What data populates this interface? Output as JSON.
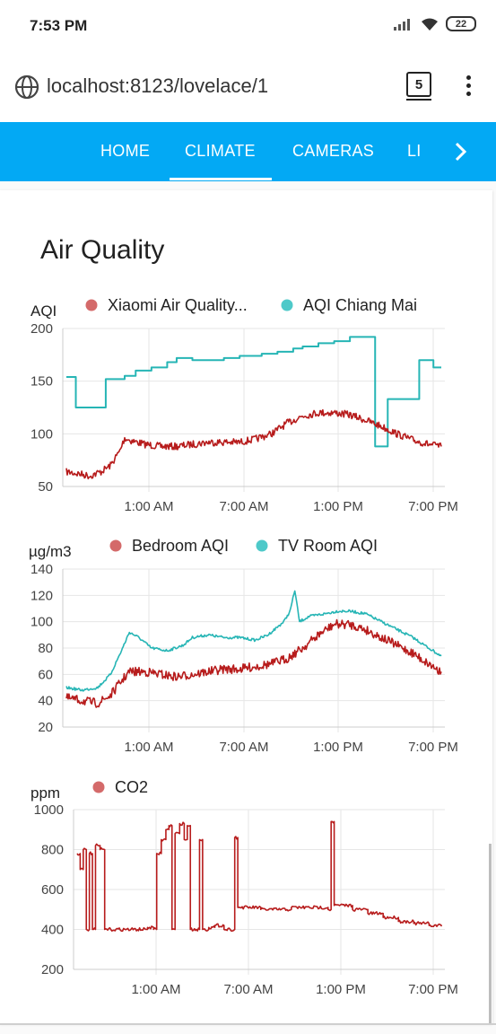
{
  "status_bar": {
    "time": "7:53 PM",
    "battery": "22"
  },
  "browser": {
    "url": "localhost:8123/lovelace/1",
    "tab_count": "5"
  },
  "tabs": [
    {
      "label": "HOME",
      "active": false
    },
    {
      "label": "CLIMATE",
      "active": true
    },
    {
      "label": "CAMERAS",
      "active": false
    },
    {
      "label": "LI",
      "active": false
    }
  ],
  "card": {
    "title": "Air Quality"
  },
  "colors": {
    "accent": "#03a9f4",
    "red": "#b71c1c",
    "teal": "#26b5b5",
    "grid": "#e0e0e0"
  },
  "chart_data": [
    {
      "type": "line",
      "ylabel": "AQI",
      "ylim": [
        50,
        200
      ],
      "yticks": [
        "200",
        "150",
        "100",
        "50"
      ],
      "xticks": [
        "1:00 AM",
        "7:00 AM",
        "1:00 PM",
        "7:00 PM"
      ],
      "xlim_hours": [
        20.0,
        43.8
      ],
      "series": [
        {
          "name": "Xiaomi Air Quality...",
          "color": "#b71c1c",
          "noise": 4,
          "type": "line",
          "points": [
            [
              20.0,
              64
            ],
            [
              20.8,
              62
            ],
            [
              21.5,
              60
            ],
            [
              22.2,
              64
            ],
            [
              22.8,
              70
            ],
            [
              23.4,
              84
            ],
            [
              23.7,
              96
            ],
            [
              24.0,
              94
            ],
            [
              25.0,
              90
            ],
            [
              26.0,
              88
            ],
            [
              27.0,
              88
            ],
            [
              28.0,
              90
            ],
            [
              29.0,
              92
            ],
            [
              30.0,
              92
            ],
            [
              31.0,
              92
            ],
            [
              32.0,
              95
            ],
            [
              33.0,
              100
            ],
            [
              34.0,
              110
            ],
            [
              35.0,
              117
            ],
            [
              36.0,
              120
            ],
            [
              37.0,
              120
            ],
            [
              38.0,
              118
            ],
            [
              39.0,
              113
            ],
            [
              40.0,
              107
            ],
            [
              41.0,
              100
            ],
            [
              42.0,
              94
            ],
            [
              43.0,
              90
            ],
            [
              43.8,
              88
            ]
          ]
        },
        {
          "name": "AQI Chiang Mai",
          "color": "#26b5b5",
          "noise": 0,
          "type": "step",
          "points": [
            [
              20.0,
              154
            ],
            [
              20.6,
              125
            ],
            [
              22.5,
              152
            ],
            [
              23.7,
              155
            ],
            [
              24.4,
              160
            ],
            [
              25.4,
              163
            ],
            [
              26.4,
              168
            ],
            [
              27.0,
              172
            ],
            [
              28.0,
              170
            ],
            [
              30.0,
              172
            ],
            [
              31.0,
              174
            ],
            [
              32.4,
              176
            ],
            [
              33.4,
              178
            ],
            [
              34.4,
              181
            ],
            [
              35.0,
              183
            ],
            [
              36.0,
              186
            ],
            [
              37.0,
              188
            ],
            [
              38.0,
              192
            ],
            [
              39.4,
              192
            ],
            [
              39.6,
              88
            ],
            [
              40.4,
              133
            ],
            [
              42.4,
              170
            ],
            [
              43.3,
              163
            ],
            [
              43.8,
              163
            ]
          ]
        }
      ]
    },
    {
      "type": "line",
      "ylabel": "µg/m3",
      "ylim": [
        20,
        140
      ],
      "yticks": [
        "140",
        "120",
        "100",
        "80",
        "60",
        "40",
        "20"
      ],
      "xticks": [
        "1:00 AM",
        "7:00 AM",
        "1:00 PM",
        "7:00 PM"
      ],
      "xlim_hours": [
        20.0,
        43.8
      ],
      "series": [
        {
          "name": "Bedroom AQI",
          "color": "#b71c1c",
          "noise": 5,
          "type": "line",
          "points": [
            [
              20.0,
              42
            ],
            [
              21.0,
              40
            ],
            [
              22.0,
              38
            ],
            [
              22.8,
              44
            ],
            [
              23.5,
              55
            ],
            [
              24.0,
              62
            ],
            [
              25.0,
              62
            ],
            [
              26.0,
              60
            ],
            [
              27.0,
              58
            ],
            [
              28.0,
              60
            ],
            [
              29.0,
              62
            ],
            [
              30.0,
              64
            ],
            [
              31.0,
              64
            ],
            [
              32.0,
              66
            ],
            [
              33.0,
              68
            ],
            [
              34.0,
              72
            ],
            [
              35.0,
              80
            ],
            [
              36.0,
              90
            ],
            [
              37.0,
              98
            ],
            [
              38.0,
              98
            ],
            [
              39.0,
              94
            ],
            [
              40.0,
              88
            ],
            [
              41.0,
              82
            ],
            [
              42.0,
              76
            ],
            [
              43.0,
              68
            ],
            [
              43.8,
              62
            ]
          ]
        },
        {
          "name": "TV Room AQI",
          "color": "#26b5b5",
          "noise": 1.5,
          "type": "line",
          "points": [
            [
              20.0,
              50
            ],
            [
              21.0,
              48
            ],
            [
              22.0,
              50
            ],
            [
              22.8,
              60
            ],
            [
              23.5,
              78
            ],
            [
              24.0,
              92
            ],
            [
              24.6,
              88
            ],
            [
              25.4,
              80
            ],
            [
              26.4,
              78
            ],
            [
              27.4,
              82
            ],
            [
              28.0,
              88
            ],
            [
              29.0,
              90
            ],
            [
              30.0,
              88
            ],
            [
              31.0,
              88
            ],
            [
              32.0,
              86
            ],
            [
              32.8,
              90
            ],
            [
              33.4,
              96
            ],
            [
              33.8,
              100
            ],
            [
              34.2,
              108
            ],
            [
              34.5,
              124
            ],
            [
              34.8,
              100
            ],
            [
              35.4,
              104
            ],
            [
              36.4,
              106
            ],
            [
              37.2,
              108
            ],
            [
              38.0,
              108
            ],
            [
              39.0,
              106
            ],
            [
              40.0,
              100
            ],
            [
              41.0,
              94
            ],
            [
              42.0,
              88
            ],
            [
              43.0,
              80
            ],
            [
              43.8,
              74
            ]
          ]
        }
      ]
    },
    {
      "type": "line",
      "ylabel": "ppm",
      "ylim": [
        200,
        1000
      ],
      "yticks": [
        "1000",
        "800",
        "600",
        "400",
        "200"
      ],
      "xticks": [
        "1:00 AM",
        "7:00 AM",
        "1:00 PM",
        "7:00 PM"
      ],
      "xlim_hours": [
        20.0,
        43.8
      ],
      "series": [
        {
          "name": "CO2",
          "color": "#b71c1c",
          "noise": 6,
          "type": "step",
          "points": [
            [
              20.0,
              780
            ],
            [
              20.2,
              700
            ],
            [
              20.4,
              800
            ],
            [
              20.6,
              400
            ],
            [
              20.8,
              780
            ],
            [
              21.0,
              400
            ],
            [
              21.2,
              820
            ],
            [
              21.5,
              800
            ],
            [
              21.8,
              400
            ],
            [
              22.2,
              400
            ],
            [
              24.5,
              400
            ],
            [
              24.6,
              410
            ],
            [
              25.0,
              400
            ],
            [
              25.2,
              780
            ],
            [
              25.5,
              850
            ],
            [
              25.8,
              900
            ],
            [
              26.0,
              920
            ],
            [
              26.2,
              400
            ],
            [
              26.4,
              880
            ],
            [
              26.7,
              930
            ],
            [
              27.0,
              850
            ],
            [
              27.2,
              920
            ],
            [
              27.4,
              400
            ],
            [
              27.8,
              400
            ],
            [
              28.0,
              850
            ],
            [
              28.2,
              400
            ],
            [
              28.6,
              410
            ],
            [
              29.0,
              420
            ],
            [
              29.6,
              400
            ],
            [
              30.0,
              400
            ],
            [
              30.3,
              860
            ],
            [
              30.5,
              510
            ],
            [
              32.0,
              500
            ],
            [
              34.0,
              510
            ],
            [
              36.4,
              500
            ],
            [
              36.6,
              940
            ],
            [
              36.8,
              520
            ],
            [
              38.0,
              500
            ],
            [
              39.0,
              480
            ],
            [
              40.0,
              460
            ],
            [
              41.0,
              440
            ],
            [
              42.0,
              430
            ],
            [
              43.0,
              420
            ],
            [
              43.8,
              415
            ]
          ]
        }
      ]
    }
  ]
}
